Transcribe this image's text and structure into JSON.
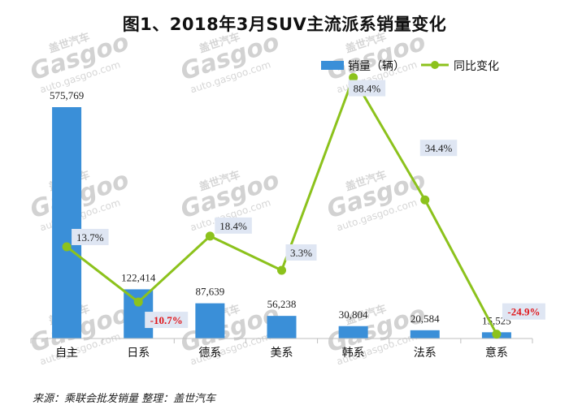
{
  "chart_data": {
    "type": "bar+line",
    "title": "图1、2018年3月SUV主流派系销量变化",
    "categories": [
      "自主",
      "日系",
      "德系",
      "美系",
      "韩系",
      "法系",
      "意系"
    ],
    "series": [
      {
        "name": "销量（辆）",
        "type": "bar",
        "values": [
          575769,
          122414,
          87639,
          56238,
          30804,
          20584,
          15525
        ],
        "labels": [
          "575,769",
          "122,414",
          "87,639",
          "56,238",
          "30,804",
          "20,584",
          "15,525"
        ],
        "color": "#3a8fd8",
        "ylim": [
          0,
          600000
        ]
      },
      {
        "name": "同比变化",
        "type": "line",
        "values": [
          13.7,
          -10.7,
          18.4,
          3.3,
          88.4,
          34.4,
          -24.9
        ],
        "labels": [
          "13.7%",
          "-10.7%",
          "18.4%",
          "3.3%",
          "88.4%",
          "34.4%",
          "-24.9%"
        ],
        "color": "#8cc21c",
        "ylim": [
          -40,
          100
        ]
      }
    ],
    "negative_label_color": "#e0161a",
    "label_box_color": "#dfe6f3",
    "legend_position": "top-right",
    "grid": false
  },
  "source": "来源：乘联会批发销量  整理：盖世汽车",
  "watermark": {
    "brand": "Gasgoo",
    "cn": "盖世汽车",
    "url": "auto.gasgoo.com"
  }
}
